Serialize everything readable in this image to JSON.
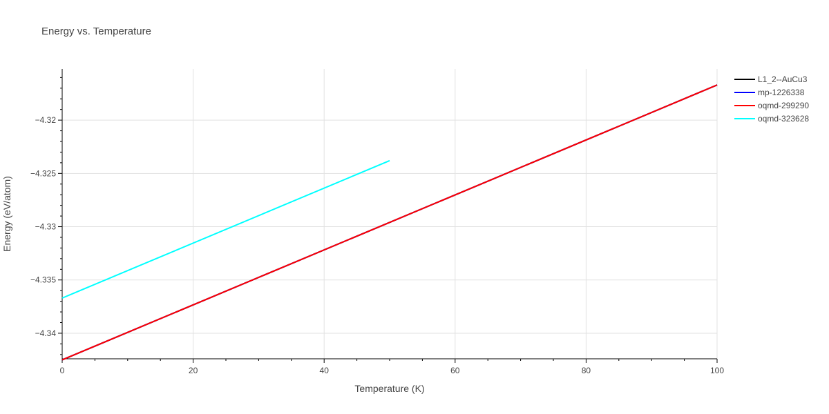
{
  "chart_data": {
    "type": "line",
    "title": "Energy vs. Temperature",
    "xlabel": "Temperature (K)",
    "ylabel": "Energy (eV/atom)",
    "xlim": [
      0,
      100
    ],
    "ylim": [
      -4.3424,
      -4.3152
    ],
    "x_ticks": [
      0,
      20,
      40,
      60,
      80,
      100
    ],
    "x_tick_labels": [
      "0",
      "20",
      "40",
      "60",
      "80",
      "100"
    ],
    "y_ticks": [
      -4.34,
      -4.335,
      -4.33,
      -4.325,
      -4.32
    ],
    "y_tick_labels": [
      "−4.34",
      "−4.335",
      "−4.33",
      "−4.325",
      "−4.32"
    ],
    "grid": true,
    "legend_position": "right",
    "series": [
      {
        "name": "L1_2--AuCu3",
        "color": "#000000",
        "x": [
          0,
          100
        ],
        "y": [
          -4.3425,
          -4.3167
        ]
      },
      {
        "name": "mp-1226338",
        "color": "#0000ff",
        "x": [
          0,
          100
        ],
        "y": [
          -4.3425,
          -4.3167
        ]
      },
      {
        "name": "oqmd-299290",
        "color": "#ff0000",
        "x": [
          0,
          100
        ],
        "y": [
          -4.3425,
          -4.3167
        ]
      },
      {
        "name": "oqmd-323628",
        "color": "#00ffff",
        "x": [
          0,
          50
        ],
        "y": [
          -4.3367,
          -4.3238
        ]
      }
    ]
  }
}
